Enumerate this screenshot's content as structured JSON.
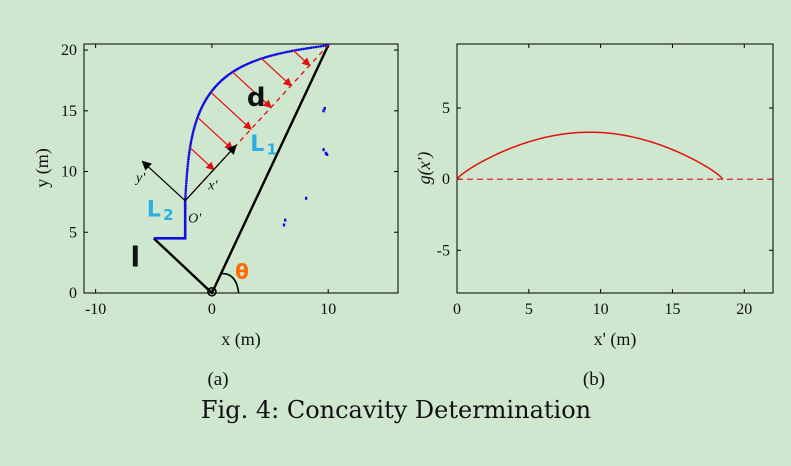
{
  "caption": "Fig. 4: Concavity Determination",
  "chart_data": [
    {
      "id": "a",
      "type": "line",
      "sublabel": "(a)",
      "xlabel": "x (m)",
      "ylabel": "y (m)",
      "xlim": [
        -11,
        16
      ],
      "ylim": [
        0,
        20.5
      ],
      "xticks": [
        -10,
        0,
        10
      ],
      "yticks": [
        0,
        5,
        10,
        15,
        20
      ],
      "blue_arc_start": [
        -2.3,
        7.6
      ],
      "blue_arc_end": [
        10,
        20.4
      ],
      "blue_polyline": [
        [
          -5,
          4.5
        ],
        [
          -2.3,
          4.5
        ],
        [
          -2.3,
          7.6
        ]
      ],
      "black_wedge": [
        [
          -5,
          4.5
        ],
        [
          0,
          0
        ],
        [
          10,
          20.4
        ]
      ],
      "red_chord": [
        [
          -2.3,
          7.6
        ],
        [
          10,
          20.4
        ]
      ],
      "blue_scatter": [
        [
          9.6,
          15.0
        ],
        [
          9.7,
          15.2
        ],
        [
          9.6,
          11.8
        ],
        [
          9.8,
          11.5
        ],
        [
          9.9,
          11.4
        ],
        [
          6.3,
          6.0
        ],
        [
          6.2,
          5.6
        ],
        [
          8.1,
          7.8
        ]
      ],
      "annotations": {
        "axis_x_prime": "x'",
        "axis_y_prime": "y'",
        "origin_prime": "O'",
        "hand_d": "d",
        "hand_L1": "L",
        "hand_L1_sub": "1",
        "hand_L2": "L",
        "hand_L2_sub": "2",
        "hand_l": "l",
        "hand_theta": "θ"
      },
      "colors": {
        "arc": "#1010e0",
        "chord": "#e01010",
        "wedge": "#000000",
        "L1": "#2ab0e0",
        "theta": "#ff6a00"
      }
    },
    {
      "id": "b",
      "type": "line",
      "sublabel": "(b)",
      "xlabel": "x' (m)",
      "ylabel": "g(x')",
      "xlim": [
        0,
        22
      ],
      "ylim": [
        -8,
        9.5
      ],
      "xticks": [
        0,
        5,
        10,
        15,
        20
      ],
      "yticks": [
        -5,
        0,
        5
      ],
      "series": [
        {
          "curve_x_range": [
            0,
            18.5
          ],
          "peak_x": 9.5,
          "peak_y": 3.3
        }
      ],
      "baseline_y": 0,
      "colors": {
        "curve": "#e01010"
      }
    }
  ]
}
